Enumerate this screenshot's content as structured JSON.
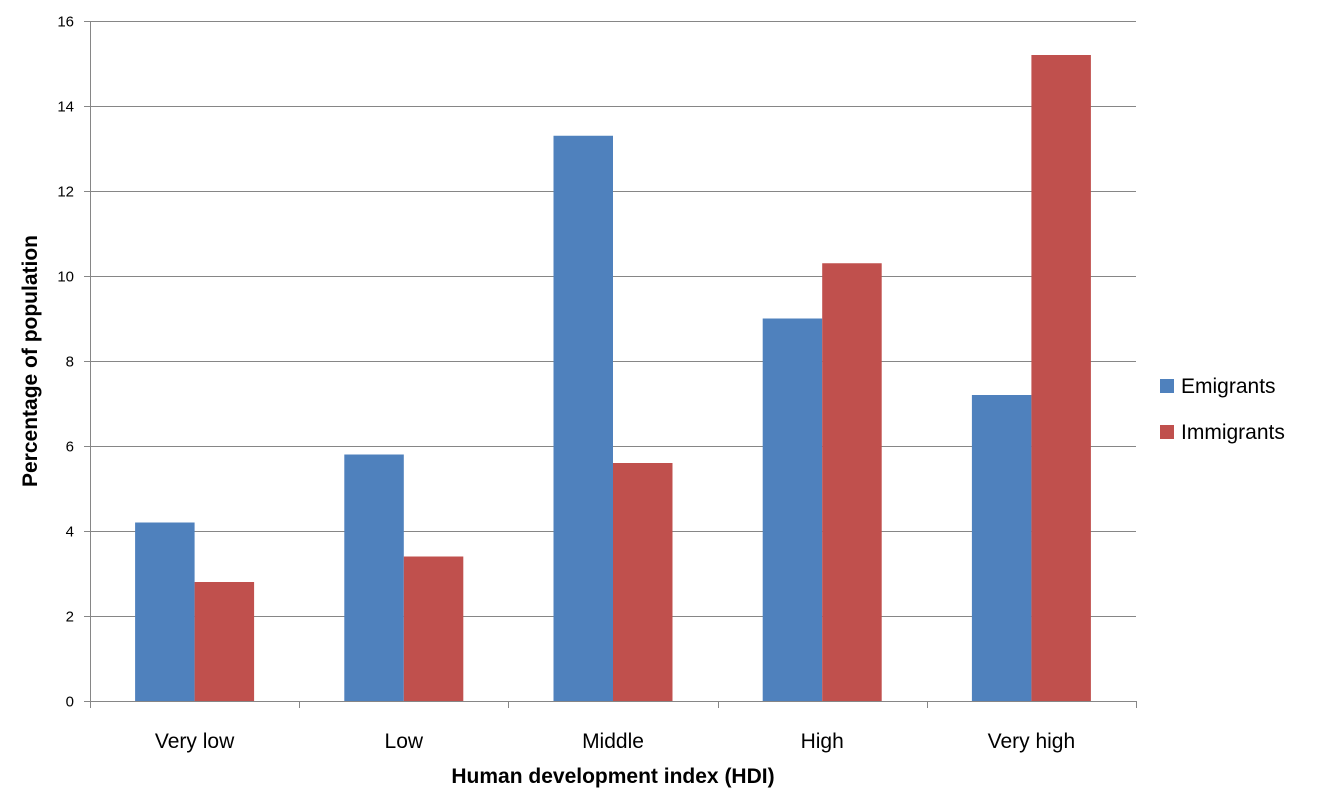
{
  "chart_data": {
    "type": "bar",
    "title": "",
    "xlabel": "Human development index (HDI)",
    "ylabel": "Percentage of population",
    "categories": [
      "Very low",
      "Low",
      "Middle",
      "High",
      "Very high"
    ],
    "series": [
      {
        "name": "Emigrants",
        "values": [
          4.2,
          5.8,
          13.3,
          9.0,
          7.2
        ],
        "color": "#4F81BD"
      },
      {
        "name": "Immigrants",
        "values": [
          2.8,
          3.4,
          5.6,
          10.3,
          15.2
        ],
        "color": "#C0504D"
      }
    ],
    "ylim": [
      0,
      16
    ],
    "yticks": [
      0,
      2,
      4,
      6,
      8,
      10,
      12,
      14,
      16
    ],
    "grid": true,
    "legend_position": "right"
  }
}
